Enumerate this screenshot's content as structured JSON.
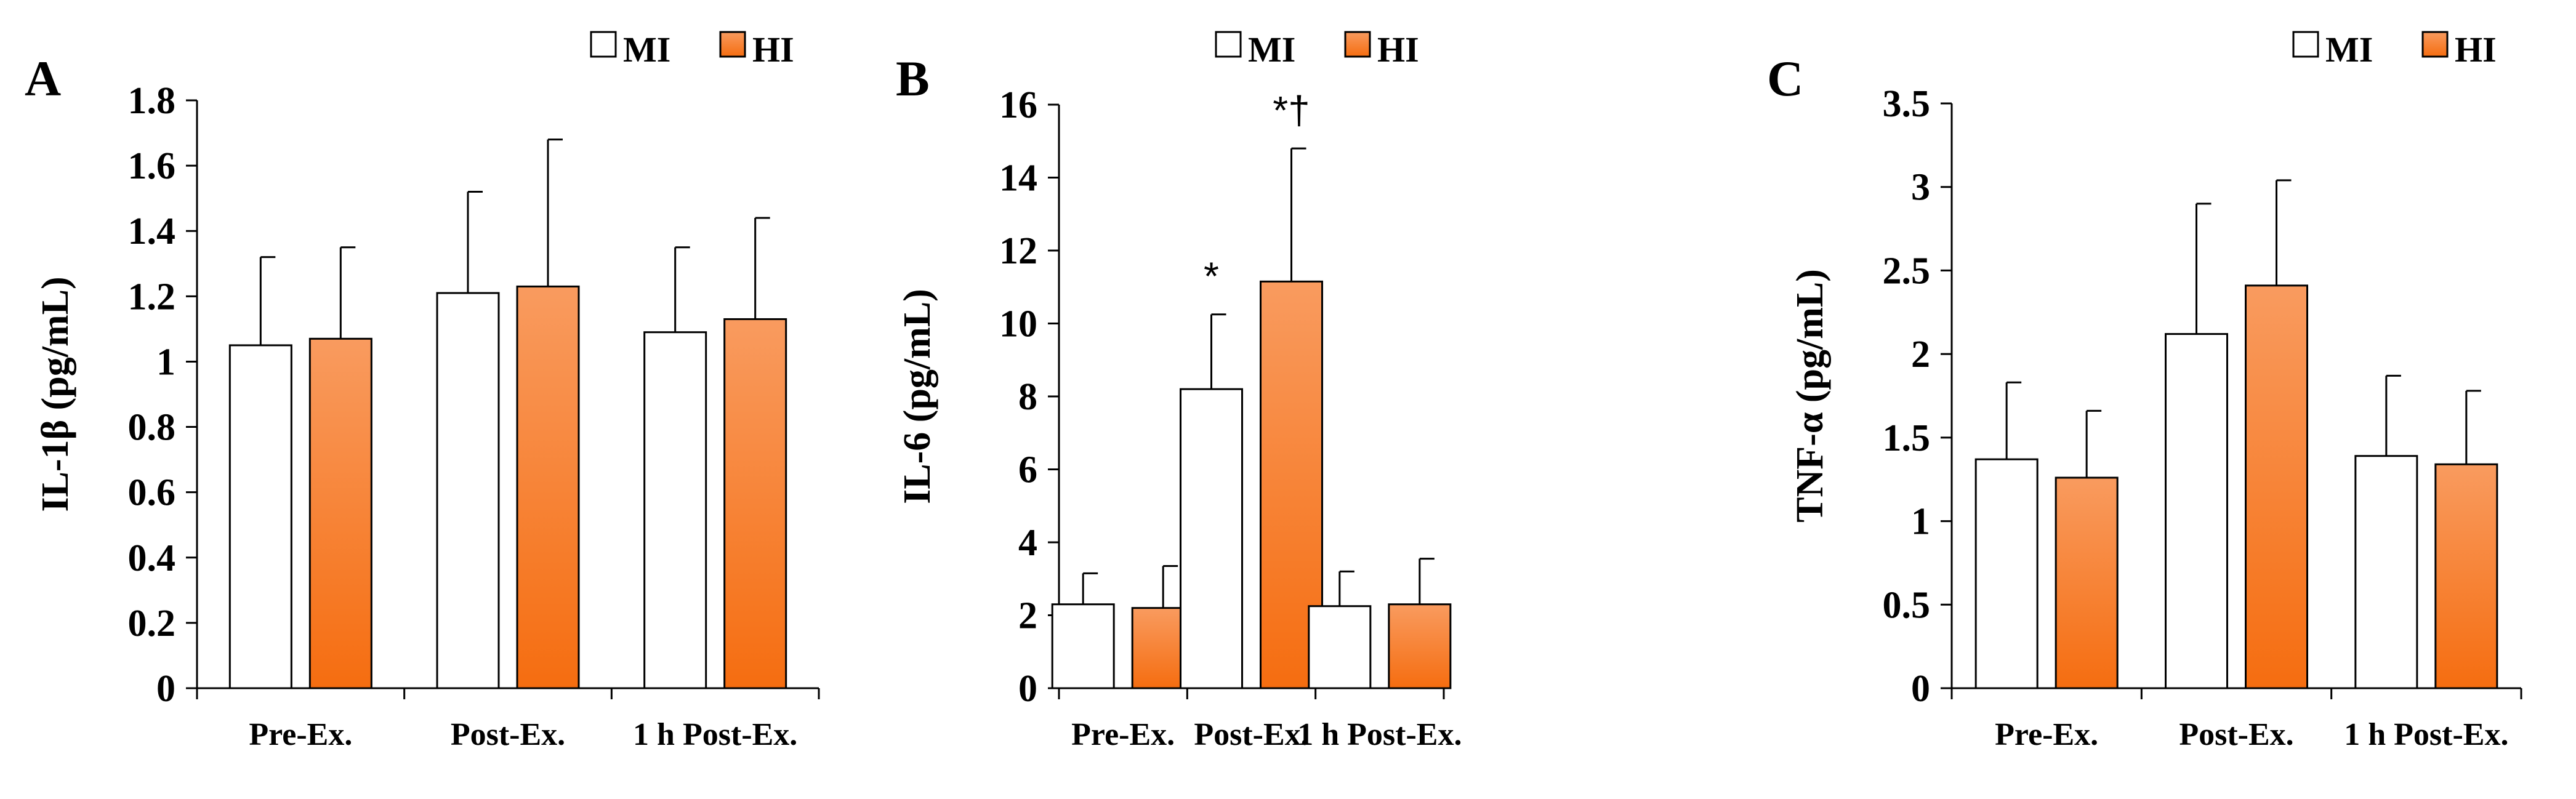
{
  "colors": {
    "mi_fill": "#ffffff",
    "hi_fill_top": "#f99b5f",
    "hi_fill_bottom": "#f56d10",
    "stroke": "#000000"
  },
  "legend": {
    "mi_label": "MI",
    "hi_label": "HI"
  },
  "chart_data": [
    {
      "type": "bar",
      "panel": "A",
      "ylabel": "IL-1β (pg/mL)",
      "ylim": [
        0,
        1.8
      ],
      "yticks": [
        "0",
        "0.2",
        "0.4",
        "0.6",
        "0.8",
        "1",
        "1.2",
        "1.4",
        "1.6",
        "1.8"
      ],
      "categories": [
        "Pre-Ex.",
        "Post-Ex.",
        "1 h Post-Ex."
      ],
      "series": [
        {
          "name": "MI",
          "values": [
            1.05,
            1.21,
            1.09
          ],
          "errors": [
            0.27,
            0.31,
            0.26
          ]
        },
        {
          "name": "HI",
          "values": [
            1.07,
            1.23,
            1.13
          ],
          "errors": [
            0.28,
            0.45,
            0.31
          ]
        }
      ],
      "annotations": [],
      "legend_position": "top-right"
    },
    {
      "type": "bar",
      "panel": "B",
      "ylabel": "IL-6 (pg/mL)",
      "ylim": [
        0,
        16
      ],
      "yticks": [
        "0",
        "2",
        "4",
        "6",
        "8",
        "10",
        "12",
        "14",
        "16"
      ],
      "categories": [
        "Pre-Ex.",
        "Post-Ex.",
        "1 h Post-Ex."
      ],
      "series": [
        {
          "name": "MI",
          "values": [
            2.3,
            8.2,
            2.25
          ],
          "errors": [
            0.85,
            2.05,
            0.95
          ]
        },
        {
          "name": "HI",
          "values": [
            2.2,
            11.15,
            2.3
          ],
          "errors": [
            1.15,
            3.65,
            1.25
          ]
        }
      ],
      "annotations": [
        {
          "series": "MI",
          "category": "Post-Ex.",
          "text": "*"
        },
        {
          "series": "HI",
          "category": "Post-Ex.",
          "text": "*†"
        }
      ],
      "legend_position": "top-right"
    },
    {
      "type": "bar",
      "panel": "C",
      "ylabel": "TNF-α (pg/mL)",
      "ylim": [
        0,
        3.5
      ],
      "yticks": [
        "0",
        "0.5",
        "1",
        "1.5",
        "2",
        "2.5",
        "3",
        "3.5"
      ],
      "categories": [
        "Pre-Ex.",
        "Post-Ex.",
        "1 h Post-Ex."
      ],
      "series": [
        {
          "name": "MI",
          "values": [
            1.37,
            2.12,
            1.39
          ],
          "errors": [
            0.46,
            0.78,
            0.48
          ]
        },
        {
          "name": "HI",
          "values": [
            1.26,
            2.41,
            1.34
          ],
          "errors": [
            0.4,
            0.63,
            0.44
          ]
        }
      ],
      "annotations": [],
      "legend_position": "top-right"
    }
  ]
}
